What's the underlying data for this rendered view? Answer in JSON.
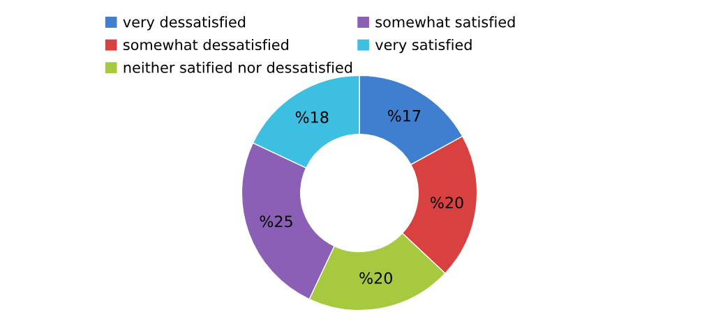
{
  "chart_data": {
    "type": "donut",
    "categories": [
      "very dessatisfied",
      "somewhat dessatisfied",
      "neither satified nor dessatisfied",
      "somewhat satisfied",
      "very satisfied"
    ],
    "values": [
      17,
      20,
      20,
      25,
      18
    ],
    "colors": [
      "#3f7fd0",
      "#d8413f",
      "#a6c940",
      "#8a5fb5",
      "#3cbfe0"
    ],
    "value_labels": [
      "%17",
      "%20",
      "%20",
      "%25",
      "%18"
    ],
    "legend": "top left"
  }
}
